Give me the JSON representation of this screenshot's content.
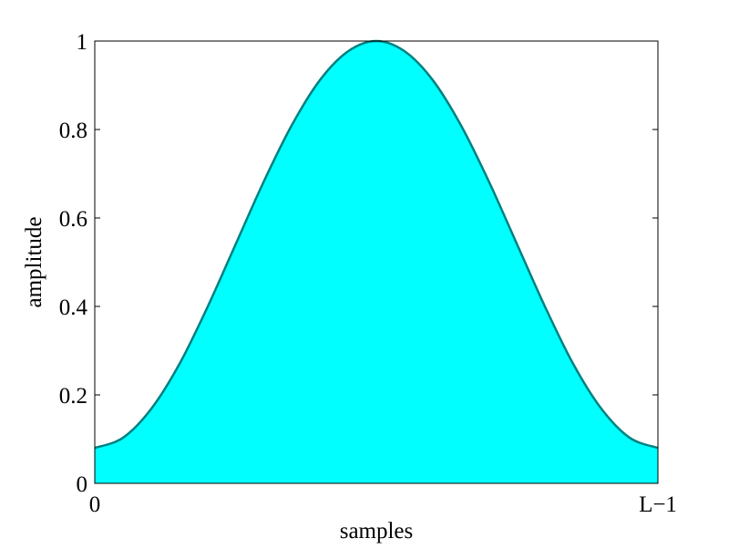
{
  "chart_data": {
    "type": "area",
    "title": "",
    "xlabel": "samples",
    "ylabel": "amplitude",
    "xlim": [
      0,
      1
    ],
    "ylim": [
      0,
      1
    ],
    "x_ticks": [
      {
        "value": 0,
        "label": "0"
      },
      {
        "value": 1,
        "label": "L−1"
      }
    ],
    "y_ticks": [
      {
        "value": 0,
        "label": "0"
      },
      {
        "value": 0.2,
        "label": "0.2"
      },
      {
        "value": 0.4,
        "label": "0.4"
      },
      {
        "value": 0.6,
        "label": "0.6"
      },
      {
        "value": 0.8,
        "label": "0.8"
      },
      {
        "value": 1,
        "label": "1"
      }
    ],
    "grid": false,
    "series": [
      {
        "x": [
          0,
          0.05,
          0.1,
          0.15,
          0.2,
          0.25,
          0.3,
          0.35,
          0.4,
          0.45,
          0.5,
          0.55,
          0.6,
          0.65,
          0.7,
          0.75,
          0.8,
          0.85,
          0.9,
          0.95,
          1
        ],
        "values": [
          0.08,
          0.103,
          0.168,
          0.269,
          0.398,
          0.54,
          0.682,
          0.81,
          0.912,
          0.977,
          1,
          0.977,
          0.912,
          0.81,
          0.682,
          0.54,
          0.398,
          0.269,
          0.168,
          0.103,
          0.08
        ]
      }
    ],
    "colors": {
      "fill": "#00ffff",
      "line": "#008080",
      "axis": "#000000"
    }
  }
}
